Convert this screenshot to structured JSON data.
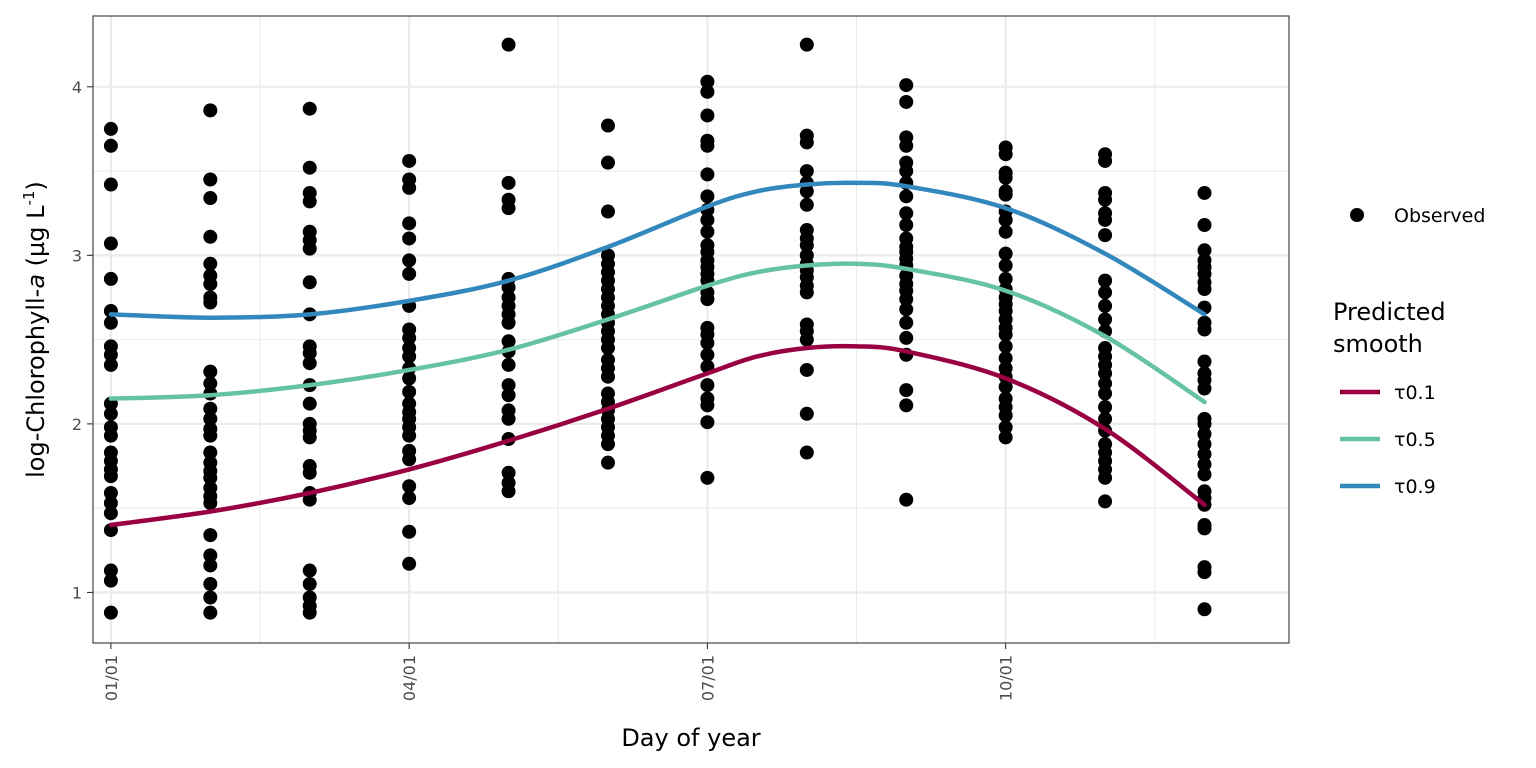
{
  "chart_data": {
    "type": "scatter",
    "xlabel": "Day of year",
    "ylabel": {
      "prefix": "log-Chlorophyll-",
      "italic": "a",
      "unit_open": " (µg L",
      "sup": "-1",
      "unit_close": ")"
    },
    "x_unit": "month",
    "xlim": [
      0.82,
      12.85
    ],
    "ylim": [
      0.7,
      4.42
    ],
    "x_ticks": [
      {
        "value": 1,
        "label": "01/01"
      },
      {
        "value": 4,
        "label": "04/01"
      },
      {
        "value": 7,
        "label": "07/01"
      },
      {
        "value": 10,
        "label": "10/01"
      }
    ],
    "x_minor_ticks": [
      2.5,
      5.5,
      8.5,
      11.5
    ],
    "y_ticks": [
      1,
      2,
      3,
      4
    ],
    "y_minor_ticks": [
      1.5,
      2.5,
      3.5
    ],
    "grid": true,
    "legend_position": "right",
    "observed": {
      "name": "Observed",
      "color": "#000000",
      "points": [
        [
          1,
          3.75
        ],
        [
          1,
          3.65
        ],
        [
          1,
          3.42
        ],
        [
          1,
          3.07
        ],
        [
          1,
          2.86
        ],
        [
          1,
          2.67
        ],
        [
          1,
          2.6
        ],
        [
          1,
          2.46
        ],
        [
          1,
          2.41
        ],
        [
          1,
          2.35
        ],
        [
          1,
          2.12
        ],
        [
          1,
          2.06
        ],
        [
          1,
          1.98
        ],
        [
          1,
          1.93
        ],
        [
          1,
          1.83
        ],
        [
          1,
          1.78
        ],
        [
          1,
          1.73
        ],
        [
          1,
          1.69
        ],
        [
          1,
          1.59
        ],
        [
          1,
          1.53
        ],
        [
          1,
          1.47
        ],
        [
          1,
          1.37
        ],
        [
          1,
          1.13
        ],
        [
          1,
          1.07
        ],
        [
          1,
          0.88
        ],
        [
          2,
          3.86
        ],
        [
          2,
          3.45
        ],
        [
          2,
          3.34
        ],
        [
          2,
          3.11
        ],
        [
          2,
          2.95
        ],
        [
          2,
          2.88
        ],
        [
          2,
          2.83
        ],
        [
          2,
          2.75
        ],
        [
          2,
          2.72
        ],
        [
          2,
          2.31
        ],
        [
          2,
          2.24
        ],
        [
          2,
          2.18
        ],
        [
          2,
          2.09
        ],
        [
          2,
          2.03
        ],
        [
          2,
          1.97
        ],
        [
          2,
          1.93
        ],
        [
          2,
          1.83
        ],
        [
          2,
          1.77
        ],
        [
          2,
          1.72
        ],
        [
          2,
          1.68
        ],
        [
          2,
          1.62
        ],
        [
          2,
          1.57
        ],
        [
          2,
          1.53
        ],
        [
          2,
          1.34
        ],
        [
          2,
          1.22
        ],
        [
          2,
          1.16
        ],
        [
          2,
          1.05
        ],
        [
          2,
          0.97
        ],
        [
          2,
          0.88
        ],
        [
          3,
          3.87
        ],
        [
          3,
          3.52
        ],
        [
          3,
          3.37
        ],
        [
          3,
          3.32
        ],
        [
          3,
          3.14
        ],
        [
          3,
          3.09
        ],
        [
          3,
          3.04
        ],
        [
          3,
          2.84
        ],
        [
          3,
          2.65
        ],
        [
          3,
          2.46
        ],
        [
          3,
          2.42
        ],
        [
          3,
          2.36
        ],
        [
          3,
          2.23
        ],
        [
          3,
          2.12
        ],
        [
          3,
          2.0
        ],
        [
          3,
          1.96
        ],
        [
          3,
          1.92
        ],
        [
          3,
          1.75
        ],
        [
          3,
          1.71
        ],
        [
          3,
          1.59
        ],
        [
          3,
          1.55
        ],
        [
          3,
          1.13
        ],
        [
          3,
          1.05
        ],
        [
          3,
          0.97
        ],
        [
          3,
          0.92
        ],
        [
          3,
          0.88
        ],
        [
          4,
          3.56
        ],
        [
          4,
          3.45
        ],
        [
          4,
          3.4
        ],
        [
          4,
          3.19
        ],
        [
          4,
          3.1
        ],
        [
          4,
          2.97
        ],
        [
          4,
          2.89
        ],
        [
          4,
          2.7
        ],
        [
          4,
          2.56
        ],
        [
          4,
          2.51
        ],
        [
          4,
          2.45
        ],
        [
          4,
          2.4
        ],
        [
          4,
          2.33
        ],
        [
          4,
          2.27
        ],
        [
          4,
          2.19
        ],
        [
          4,
          2.12
        ],
        [
          4,
          2.07
        ],
        [
          4,
          2.03
        ],
        [
          4,
          1.98
        ],
        [
          4,
          1.93
        ],
        [
          4,
          1.84
        ],
        [
          4,
          1.79
        ],
        [
          4,
          1.63
        ],
        [
          4,
          1.56
        ],
        [
          4,
          1.36
        ],
        [
          4,
          1.17
        ],
        [
          5,
          4.25
        ],
        [
          5,
          3.43
        ],
        [
          5,
          3.33
        ],
        [
          5,
          3.28
        ],
        [
          5,
          2.86
        ],
        [
          5,
          2.81
        ],
        [
          5,
          2.75
        ],
        [
          5,
          2.7
        ],
        [
          5,
          2.65
        ],
        [
          5,
          2.6
        ],
        [
          5,
          2.49
        ],
        [
          5,
          2.43
        ],
        [
          5,
          2.35
        ],
        [
          5,
          2.23
        ],
        [
          5,
          2.17
        ],
        [
          5,
          2.08
        ],
        [
          5,
          2.03
        ],
        [
          5,
          1.91
        ],
        [
          5,
          1.71
        ],
        [
          5,
          1.65
        ],
        [
          5,
          1.6
        ],
        [
          6,
          3.77
        ],
        [
          6,
          3.55
        ],
        [
          6,
          3.26
        ],
        [
          6,
          3.0
        ],
        [
          6,
          2.95
        ],
        [
          6,
          2.9
        ],
        [
          6,
          2.85
        ],
        [
          6,
          2.8
        ],
        [
          6,
          2.75
        ],
        [
          6,
          2.7
        ],
        [
          6,
          2.65
        ],
        [
          6,
          2.6
        ],
        [
          6,
          2.55
        ],
        [
          6,
          2.5
        ],
        [
          6,
          2.45
        ],
        [
          6,
          2.38
        ],
        [
          6,
          2.33
        ],
        [
          6,
          2.28
        ],
        [
          6,
          2.18
        ],
        [
          6,
          2.13
        ],
        [
          6,
          2.08
        ],
        [
          6,
          2.03
        ],
        [
          6,
          1.98
        ],
        [
          6,
          1.93
        ],
        [
          6,
          1.88
        ],
        [
          6,
          1.77
        ],
        [
          7,
          4.03
        ],
        [
          7,
          3.97
        ],
        [
          7,
          3.83
        ],
        [
          7,
          3.68
        ],
        [
          7,
          3.65
        ],
        [
          7,
          3.48
        ],
        [
          7,
          3.35
        ],
        [
          7,
          3.27
        ],
        [
          7,
          3.21
        ],
        [
          7,
          3.14
        ],
        [
          7,
          3.06
        ],
        [
          7,
          3.02
        ],
        [
          7,
          2.97
        ],
        [
          7,
          2.93
        ],
        [
          7,
          2.89
        ],
        [
          7,
          2.85
        ],
        [
          7,
          2.78
        ],
        [
          7,
          2.74
        ],
        [
          7,
          2.57
        ],
        [
          7,
          2.53
        ],
        [
          7,
          2.48
        ],
        [
          7,
          2.41
        ],
        [
          7,
          2.34
        ],
        [
          7,
          2.23
        ],
        [
          7,
          2.15
        ],
        [
          7,
          2.11
        ],
        [
          7,
          2.01
        ],
        [
          7,
          1.68
        ],
        [
          8,
          4.25
        ],
        [
          8,
          3.71
        ],
        [
          8,
          3.67
        ],
        [
          8,
          3.5
        ],
        [
          8,
          3.43
        ],
        [
          8,
          3.38
        ],
        [
          8,
          3.3
        ],
        [
          8,
          3.15
        ],
        [
          8,
          3.1
        ],
        [
          8,
          3.06
        ],
        [
          8,
          3.0
        ],
        [
          8,
          2.95
        ],
        [
          8,
          2.91
        ],
        [
          8,
          2.87
        ],
        [
          8,
          2.82
        ],
        [
          8,
          2.78
        ],
        [
          8,
          2.59
        ],
        [
          8,
          2.55
        ],
        [
          8,
          2.5
        ],
        [
          8,
          2.32
        ],
        [
          8,
          2.06
        ],
        [
          8,
          1.83
        ],
        [
          9,
          4.01
        ],
        [
          9,
          3.91
        ],
        [
          9,
          3.7
        ],
        [
          9,
          3.65
        ],
        [
          9,
          3.55
        ],
        [
          9,
          3.5
        ],
        [
          9,
          3.43
        ],
        [
          9,
          3.35
        ],
        [
          9,
          3.25
        ],
        [
          9,
          3.18
        ],
        [
          9,
          3.1
        ],
        [
          9,
          3.05
        ],
        [
          9,
          3.02
        ],
        [
          9,
          2.98
        ],
        [
          9,
          2.94
        ],
        [
          9,
          2.88
        ],
        [
          9,
          2.83
        ],
        [
          9,
          2.79
        ],
        [
          9,
          2.74
        ],
        [
          9,
          2.68
        ],
        [
          9,
          2.6
        ],
        [
          9,
          2.51
        ],
        [
          9,
          2.41
        ],
        [
          9,
          2.2
        ],
        [
          9,
          2.11
        ],
        [
          9,
          1.55
        ],
        [
          10,
          3.64
        ],
        [
          10,
          3.6
        ],
        [
          10,
          3.49
        ],
        [
          10,
          3.46
        ],
        [
          10,
          3.38
        ],
        [
          10,
          3.36
        ],
        [
          10,
          3.26
        ],
        [
          10,
          3.21
        ],
        [
          10,
          3.14
        ],
        [
          10,
          3.01
        ],
        [
          10,
          2.94
        ],
        [
          10,
          2.86
        ],
        [
          10,
          2.8
        ],
        [
          10,
          2.75
        ],
        [
          10,
          2.71
        ],
        [
          10,
          2.67
        ],
        [
          10,
          2.62
        ],
        [
          10,
          2.57
        ],
        [
          10,
          2.53
        ],
        [
          10,
          2.46
        ],
        [
          10,
          2.39
        ],
        [
          10,
          2.33
        ],
        [
          10,
          2.28
        ],
        [
          10,
          2.22
        ],
        [
          10,
          2.15
        ],
        [
          10,
          2.1
        ],
        [
          10,
          2.05
        ],
        [
          10,
          1.98
        ],
        [
          10,
          1.92
        ],
        [
          11,
          3.6
        ],
        [
          11,
          3.56
        ],
        [
          11,
          3.37
        ],
        [
          11,
          3.33
        ],
        [
          11,
          3.25
        ],
        [
          11,
          3.21
        ],
        [
          11,
          3.12
        ],
        [
          11,
          2.85
        ],
        [
          11,
          2.78
        ],
        [
          11,
          2.7
        ],
        [
          11,
          2.62
        ],
        [
          11,
          2.55
        ],
        [
          11,
          2.45
        ],
        [
          11,
          2.4
        ],
        [
          11,
          2.35
        ],
        [
          11,
          2.3
        ],
        [
          11,
          2.24
        ],
        [
          11,
          2.18
        ],
        [
          11,
          2.1
        ],
        [
          11,
          2.03
        ],
        [
          11,
          1.96
        ],
        [
          11,
          1.88
        ],
        [
          11,
          1.83
        ],
        [
          11,
          1.78
        ],
        [
          11,
          1.73
        ],
        [
          11,
          1.68
        ],
        [
          11,
          1.54
        ],
        [
          12,
          3.37
        ],
        [
          12,
          3.18
        ],
        [
          12,
          3.03
        ],
        [
          12,
          2.97
        ],
        [
          12,
          2.93
        ],
        [
          12,
          2.89
        ],
        [
          12,
          2.84
        ],
        [
          12,
          2.8
        ],
        [
          12,
          2.69
        ],
        [
          12,
          2.6
        ],
        [
          12,
          2.56
        ],
        [
          12,
          2.37
        ],
        [
          12,
          2.3
        ],
        [
          12,
          2.26
        ],
        [
          12,
          2.21
        ],
        [
          12,
          2.03
        ],
        [
          12,
          2.0
        ],
        [
          12,
          1.94
        ],
        [
          12,
          1.88
        ],
        [
          12,
          1.82
        ],
        [
          12,
          1.76
        ],
        [
          12,
          1.7
        ],
        [
          12,
          1.6
        ],
        [
          12,
          1.56
        ],
        [
          12,
          1.52
        ],
        [
          12,
          1.4
        ],
        [
          12,
          1.38
        ],
        [
          12,
          1.15
        ],
        [
          12,
          1.12
        ],
        [
          12,
          0.9
        ]
      ]
    },
    "legend": {
      "observed_label": "Observed",
      "smooth_title_line1": "Predicted",
      "smooth_title_line2": "smooth"
    },
    "series": [
      {
        "name": "τ0.1",
        "color": "#990042",
        "x": [
          1,
          2,
          3,
          4,
          5,
          6,
          7,
          7.5,
          8,
          8.5,
          9,
          10,
          11,
          12
        ],
        "y": [
          1.4,
          1.48,
          1.59,
          1.73,
          1.9,
          2.09,
          2.3,
          2.4,
          2.45,
          2.46,
          2.43,
          2.27,
          1.97,
          1.52
        ]
      },
      {
        "name": "τ0.5",
        "color": "#66c2a5",
        "x": [
          1,
          2,
          3,
          4,
          5,
          6,
          7,
          7.5,
          8,
          8.5,
          9,
          10,
          11,
          12
        ],
        "y": [
          2.15,
          2.17,
          2.23,
          2.32,
          2.44,
          2.62,
          2.82,
          2.9,
          2.94,
          2.95,
          2.92,
          2.79,
          2.52,
          2.13
        ]
      },
      {
        "name": "τ0.9",
        "color": "#3288bd",
        "x": [
          1,
          2,
          3,
          4,
          5,
          6,
          7,
          7.5,
          8,
          8.5,
          9,
          10,
          11,
          12
        ],
        "y": [
          2.65,
          2.63,
          2.65,
          2.73,
          2.85,
          3.05,
          3.29,
          3.38,
          3.42,
          3.43,
          3.41,
          3.28,
          3.01,
          2.65
        ]
      }
    ]
  }
}
